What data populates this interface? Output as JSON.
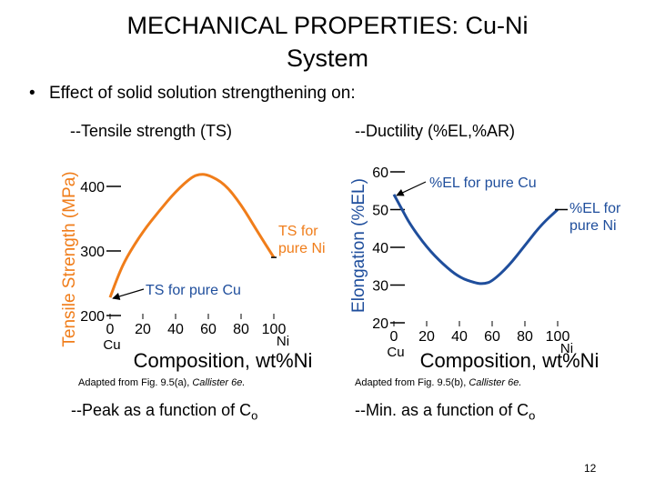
{
  "title_line1": "MECHANICAL PROPERTIES: Cu-Ni",
  "title_line2": "System",
  "bullet_text": "Effect of solid solution strengthening on:",
  "left": {
    "subtitle": "--Tensile strength (TS)",
    "caption_prefix": "Adapted from Fig. 9.5(a), ",
    "caption_italic": "Callister 6e.",
    "bottom_text": "--Peak as a function of C",
    "bottom_sub": "o"
  },
  "right": {
    "subtitle": "--Ductility (%EL,%AR)",
    "caption_prefix": "Adapted from Fig. 9.5(b), ",
    "caption_italic": "Callister 6e.",
    "bottom_text": "--Min. as a function of C",
    "bottom_sub": "o"
  },
  "page_number": "12",
  "colors": {
    "ts_line": "#f07d1a",
    "el_line": "#1f4e9c",
    "annotation": "#1f4e9c"
  },
  "chart_data": [
    {
      "type": "line",
      "title": "",
      "xlabel": "Composition, wt%Ni",
      "ylabel": "Tensile Strength (MPa)",
      "xlim": [
        0,
        100
      ],
      "ylim": [
        200,
        400
      ],
      "x_ticks": [
        "0",
        "20",
        "40",
        "60",
        "80",
        "100"
      ],
      "y_ticks": [
        "200",
        "300",
        "400"
      ],
      "x_end_labels": {
        "left": "Cu",
        "right": "Ni"
      },
      "series": [
        {
          "name": "TS",
          "x": [
            0,
            5,
            10,
            20,
            30,
            40,
            50,
            55,
            60,
            70,
            80,
            90,
            100
          ],
          "values": [
            228,
            262,
            290,
            330,
            362,
            392,
            415,
            419,
            418,
            404,
            372,
            330,
            290
          ]
        }
      ],
      "annotations": [
        {
          "text": "TS for pure Cu",
          "x": 0,
          "y": 228
        },
        {
          "text": "TS for pure Ni",
          "x": 100,
          "y": 290
        }
      ]
    },
    {
      "type": "line",
      "title": "",
      "xlabel": "Composition, wt%Ni",
      "ylabel": "Elongation (%EL)",
      "xlim": [
        0,
        100
      ],
      "ylim": [
        20,
        60
      ],
      "x_ticks": [
        "0",
        "20",
        "40",
        "60",
        "80",
        "100"
      ],
      "y_ticks": [
        "20",
        "30",
        "40",
        "50",
        "60"
      ],
      "x_end_labels": {
        "left": "Cu",
        "right": "Ni"
      },
      "series": [
        {
          "name": "%EL",
          "x": [
            0,
            5,
            10,
            20,
            30,
            40,
            50,
            55,
            60,
            70,
            80,
            90,
            100
          ],
          "values": [
            54,
            50,
            46,
            40,
            35.5,
            32,
            30.5,
            30.3,
            31,
            35,
            40.5,
            46,
            50
          ]
        }
      ],
      "annotations": [
        {
          "text": "%EL for pure Cu",
          "x": 0,
          "y": 54
        },
        {
          "text": "%EL for pure Ni",
          "x": 100,
          "y": 50
        }
      ]
    }
  ]
}
